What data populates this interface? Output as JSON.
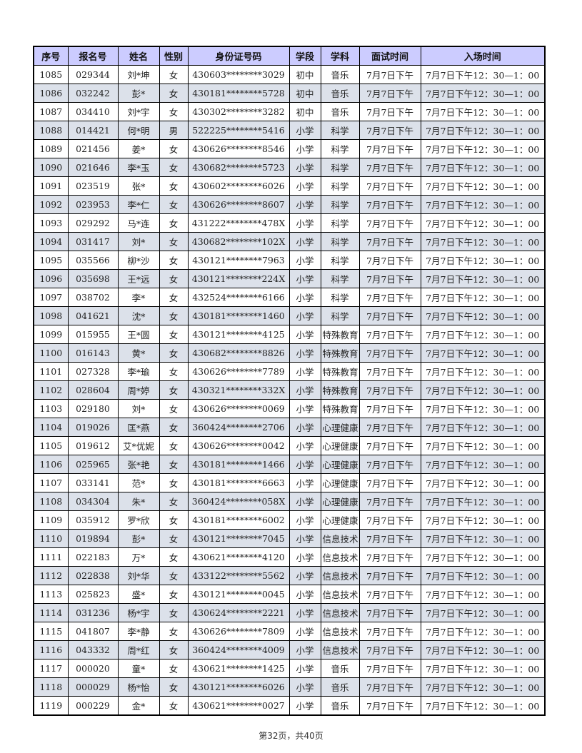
{
  "table": {
    "headers": [
      "序号",
      "报名号",
      "姓名",
      "性别",
      "身份证号码",
      "学段",
      "学科",
      "面试时间",
      "入场时间"
    ],
    "rows": [
      [
        "1085",
        "029344",
        "刘*坤",
        "女",
        "430603********3029",
        "初中",
        "音乐",
        "7月7日下午",
        "7月7日下午12：30—1：00"
      ],
      [
        "1086",
        "032242",
        "彭*",
        "女",
        "430181********5728",
        "初中",
        "音乐",
        "7月7日下午",
        "7月7日下午12：30—1：00"
      ],
      [
        "1087",
        "034410",
        "刘*宇",
        "女",
        "430302********3282",
        "初中",
        "音乐",
        "7月7日下午",
        "7月7日下午12：30—1：00"
      ],
      [
        "1088",
        "014421",
        "何*明",
        "男",
        "522225********5416",
        "小学",
        "科学",
        "7月7日下午",
        "7月7日下午12：30—1：00"
      ],
      [
        "1089",
        "021456",
        "姜*",
        "女",
        "430626********8546",
        "小学",
        "科学",
        "7月7日下午",
        "7月7日下午12：30—1：00"
      ],
      [
        "1090",
        "021646",
        "李*玉",
        "女",
        "430682********5723",
        "小学",
        "科学",
        "7月7日下午",
        "7月7日下午12：30—1：00"
      ],
      [
        "1091",
        "023519",
        "张*",
        "女",
        "430602********6026",
        "小学",
        "科学",
        "7月7日下午",
        "7月7日下午12：30—1：00"
      ],
      [
        "1092",
        "023953",
        "李*仁",
        "女",
        "430626********8607",
        "小学",
        "科学",
        "7月7日下午",
        "7月7日下午12：30—1：00"
      ],
      [
        "1093",
        "029292",
        "马*连",
        "女",
        "431222********478X",
        "小学",
        "科学",
        "7月7日下午",
        "7月7日下午12：30—1：00"
      ],
      [
        "1094",
        "031417",
        "刘*",
        "女",
        "430682********102X",
        "小学",
        "科学",
        "7月7日下午",
        "7月7日下午12：30—1：00"
      ],
      [
        "1095",
        "035566",
        "柳*沙",
        "女",
        "430121********7963",
        "小学",
        "科学",
        "7月7日下午",
        "7月7日下午12：30—1：00"
      ],
      [
        "1096",
        "035698",
        "王*远",
        "女",
        "430121********224X",
        "小学",
        "科学",
        "7月7日下午",
        "7月7日下午12：30—1：00"
      ],
      [
        "1097",
        "038702",
        "李*",
        "女",
        "432524********6166",
        "小学",
        "科学",
        "7月7日下午",
        "7月7日下午12：30—1：00"
      ],
      [
        "1098",
        "041621",
        "沈*",
        "女",
        "430181********1460",
        "小学",
        "科学",
        "7月7日下午",
        "7月7日下午12：30—1：00"
      ],
      [
        "1099",
        "015955",
        "王*圆",
        "女",
        "430121********4125",
        "小学",
        "特殊教育",
        "7月7日下午",
        "7月7日下午12：30—1：00"
      ],
      [
        "1100",
        "016143",
        "黄*",
        "女",
        "430682********8826",
        "小学",
        "特殊教育",
        "7月7日下午",
        "7月7日下午12：30—1：00"
      ],
      [
        "1101",
        "027328",
        "李*瑜",
        "女",
        "430626********7789",
        "小学",
        "特殊教育",
        "7月7日下午",
        "7月7日下午12：30—1：00"
      ],
      [
        "1102",
        "028604",
        "周*婷",
        "女",
        "430321********332X",
        "小学",
        "特殊教育",
        "7月7日下午",
        "7月7日下午12：30—1：00"
      ],
      [
        "1103",
        "029180",
        "刘*",
        "女",
        "430626********0069",
        "小学",
        "特殊教育",
        "7月7日下午",
        "7月7日下午12：30—1：00"
      ],
      [
        "1104",
        "019026",
        "匡*燕",
        "女",
        "360424********2706",
        "小学",
        "心理健康",
        "7月7日下午",
        "7月7日下午12：30—1：00"
      ],
      [
        "1105",
        "019612",
        "艾*优妮",
        "女",
        "430626********0042",
        "小学",
        "心理健康",
        "7月7日下午",
        "7月7日下午12：30—1：00"
      ],
      [
        "1106",
        "025965",
        "张*艳",
        "女",
        "430181********1466",
        "小学",
        "心理健康",
        "7月7日下午",
        "7月7日下午12：30—1：00"
      ],
      [
        "1107",
        "033141",
        "范*",
        "女",
        "430181********6663",
        "小学",
        "心理健康",
        "7月7日下午",
        "7月7日下午12：30—1：00"
      ],
      [
        "1108",
        "034304",
        "朱*",
        "女",
        "360424********058X",
        "小学",
        "心理健康",
        "7月7日下午",
        "7月7日下午12：30—1：00"
      ],
      [
        "1109",
        "035912",
        "罗*欣",
        "女",
        "430181********6002",
        "小学",
        "心理健康",
        "7月7日下午",
        "7月7日下午12：30—1：00"
      ],
      [
        "1110",
        "019894",
        "彭*",
        "女",
        "430121********7045",
        "小学",
        "信息技术",
        "7月7日下午",
        "7月7日下午12：30—1：00"
      ],
      [
        "1111",
        "022183",
        "万*",
        "女",
        "430621********4120",
        "小学",
        "信息技术",
        "7月7日下午",
        "7月7日下午12：30—1：00"
      ],
      [
        "1112",
        "022838",
        "刘*华",
        "女",
        "433122********5562",
        "小学",
        "信息技术",
        "7月7日下午",
        "7月7日下午12：30—1：00"
      ],
      [
        "1113",
        "025823",
        "盛*",
        "女",
        "430121********0045",
        "小学",
        "信息技术",
        "7月7日下午",
        "7月7日下午12：30—1：00"
      ],
      [
        "1114",
        "031236",
        "杨*宇",
        "女",
        "430624********2221",
        "小学",
        "信息技术",
        "7月7日下午",
        "7月7日下午12：30—1：00"
      ],
      [
        "1115",
        "041807",
        "李*静",
        "女",
        "430626********7809",
        "小学",
        "信息技术",
        "7月7日下午",
        "7月7日下午12：30—1：00"
      ],
      [
        "1116",
        "043332",
        "周*红",
        "女",
        "360424********4009",
        "小学",
        "信息技术",
        "7月7日下午",
        "7月7日下午12：30—1：00"
      ],
      [
        "1117",
        "000020",
        "童*",
        "女",
        "430621********1425",
        "小学",
        "音乐",
        "7月7日下午",
        "7月7日下午12：30—1：00"
      ],
      [
        "1118",
        "000029",
        "杨*怡",
        "女",
        "430121********6026",
        "小学",
        "音乐",
        "7月7日下午",
        "7月7日下午12：30—1：00"
      ],
      [
        "1119",
        "000229",
        "金*",
        "女",
        "430621********0027",
        "小学",
        "音乐",
        "7月7日下午",
        "7月7日下午12：30—1：00"
      ]
    ]
  },
  "footer": {
    "page_label": "第32页，共40页"
  },
  "colors": {
    "header_bg": "#ccccff",
    "alt_row_bg": "#dce1ea"
  }
}
